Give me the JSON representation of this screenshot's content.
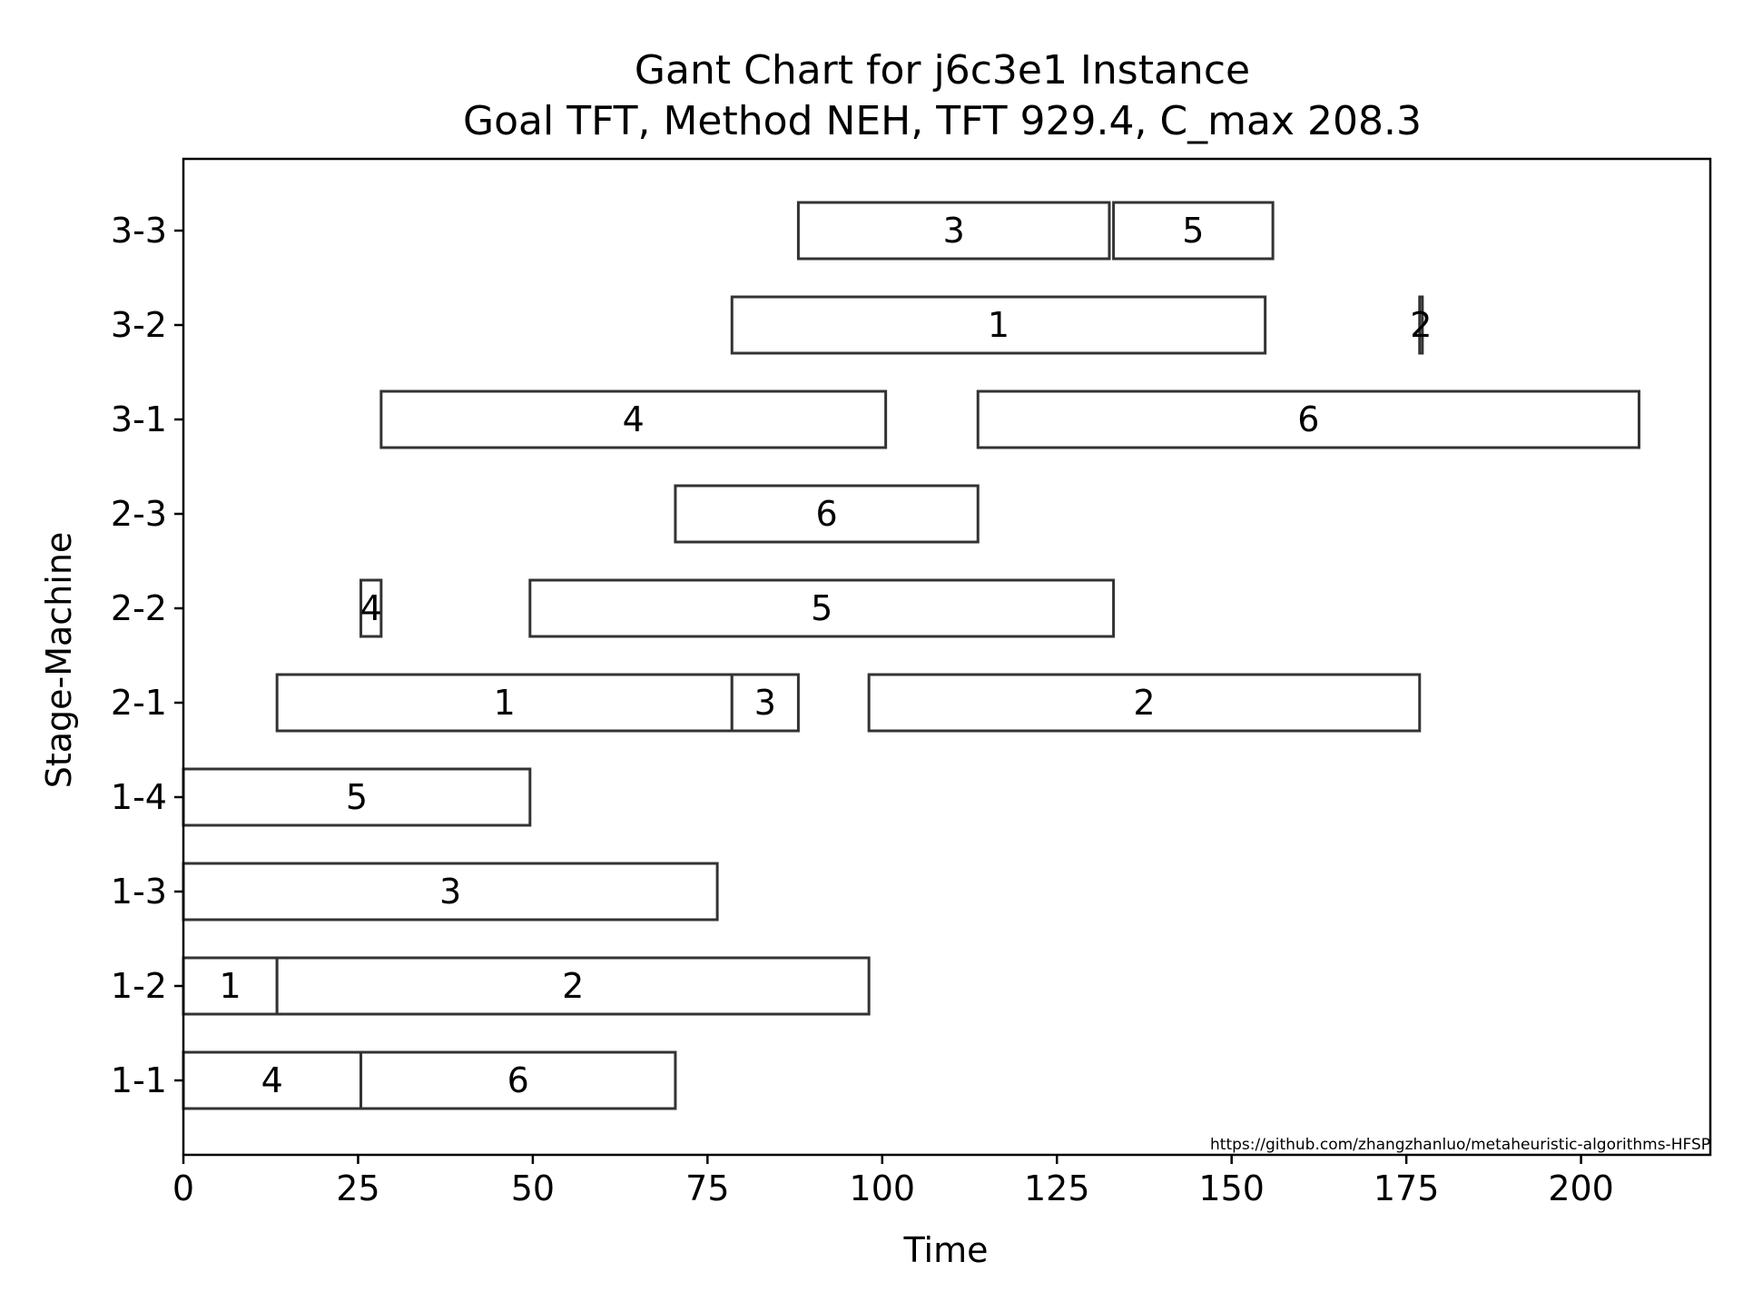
{
  "chart_data": {
    "type": "gantt",
    "title": "Gant Chart for j6c3e1 Instance",
    "subtitle": "Goal TFT, Method NEH, TFT 929.4, C_max 208.3",
    "xlabel": "Time",
    "ylabel": "Stage-Machine",
    "xlim": [
      0,
      218.5
    ],
    "x_ticks": [
      0,
      25,
      50,
      75,
      100,
      125,
      150,
      175,
      200
    ],
    "y_categories": [
      "1-1",
      "1-2",
      "1-3",
      "1-4",
      "2-1",
      "2-2",
      "2-3",
      "3-1",
      "3-2",
      "3-3"
    ],
    "grid": false,
    "legend": "none",
    "colors": {
      "bar_fill": "#ffffff",
      "bar_edge": "#333333",
      "axis": "#000000",
      "text": "#000000"
    },
    "tasks": [
      {
        "machine": "1-1",
        "job": "4",
        "start": 0,
        "end": 25.4
      },
      {
        "machine": "1-1",
        "job": "6",
        "start": 25.4,
        "end": 70.4
      },
      {
        "machine": "1-2",
        "job": "1",
        "start": 0,
        "end": 13.4
      },
      {
        "machine": "1-2",
        "job": "2",
        "start": 13.4,
        "end": 98.1
      },
      {
        "machine": "1-3",
        "job": "3",
        "start": 0,
        "end": 76.4
      },
      {
        "machine": "1-4",
        "job": "5",
        "start": 0,
        "end": 49.6
      },
      {
        "machine": "2-1",
        "job": "1",
        "start": 13.4,
        "end": 78.5
      },
      {
        "machine": "2-1",
        "job": "3",
        "start": 78.5,
        "end": 88.0
      },
      {
        "machine": "2-1",
        "job": "2",
        "start": 98.1,
        "end": 176.9
      },
      {
        "machine": "2-2",
        "job": "4",
        "start": 25.4,
        "end": 28.3
      },
      {
        "machine": "2-2",
        "job": "5",
        "start": 49.6,
        "end": 133.1
      },
      {
        "machine": "2-3",
        "job": "6",
        "start": 70.4,
        "end": 113.7
      },
      {
        "machine": "3-1",
        "job": "4",
        "start": 28.3,
        "end": 100.5
      },
      {
        "machine": "3-1",
        "job": "6",
        "start": 113.7,
        "end": 208.3
      },
      {
        "machine": "3-2",
        "job": "1",
        "start": 78.5,
        "end": 154.8
      },
      {
        "machine": "3-2",
        "job": "2",
        "start": 176.9,
        "end": 177.3
      },
      {
        "machine": "3-3",
        "job": "3",
        "start": 88.0,
        "end": 132.5
      },
      {
        "machine": "3-3",
        "job": "5",
        "start": 133.1,
        "end": 155.9
      }
    ],
    "watermark": "https://github.com/zhangzhanluo/metaheuristic-algorithms-HFSP"
  }
}
